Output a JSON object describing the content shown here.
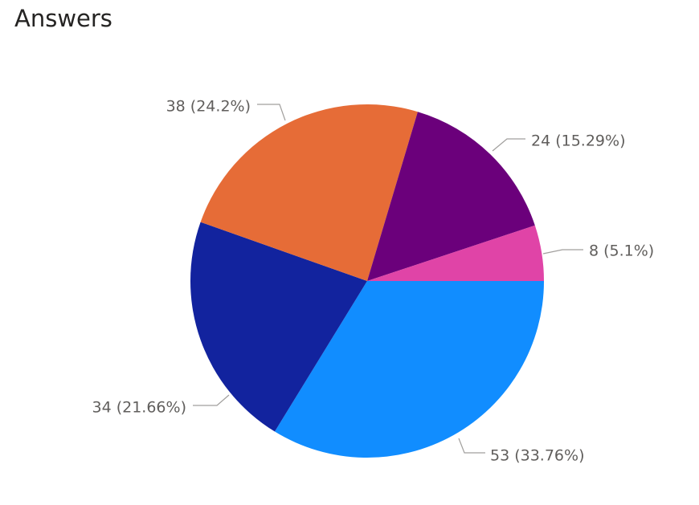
{
  "title": "Answers",
  "chart_data": {
    "type": "pie",
    "title": "Answers",
    "slices": [
      {
        "value": 53,
        "label": "53 (33.76%)",
        "color": "#118dff"
      },
      {
        "value": 34,
        "label": "34 (21.66%)",
        "color": "#12239e"
      },
      {
        "value": 38,
        "label": "38 (24.2%)",
        "color": "#e66c37"
      },
      {
        "value": 24,
        "label": "24 (15.29%)",
        "color": "#6b007b"
      },
      {
        "value": 8,
        "label": "8 (5.1%)",
        "color": "#e044a7"
      }
    ]
  }
}
